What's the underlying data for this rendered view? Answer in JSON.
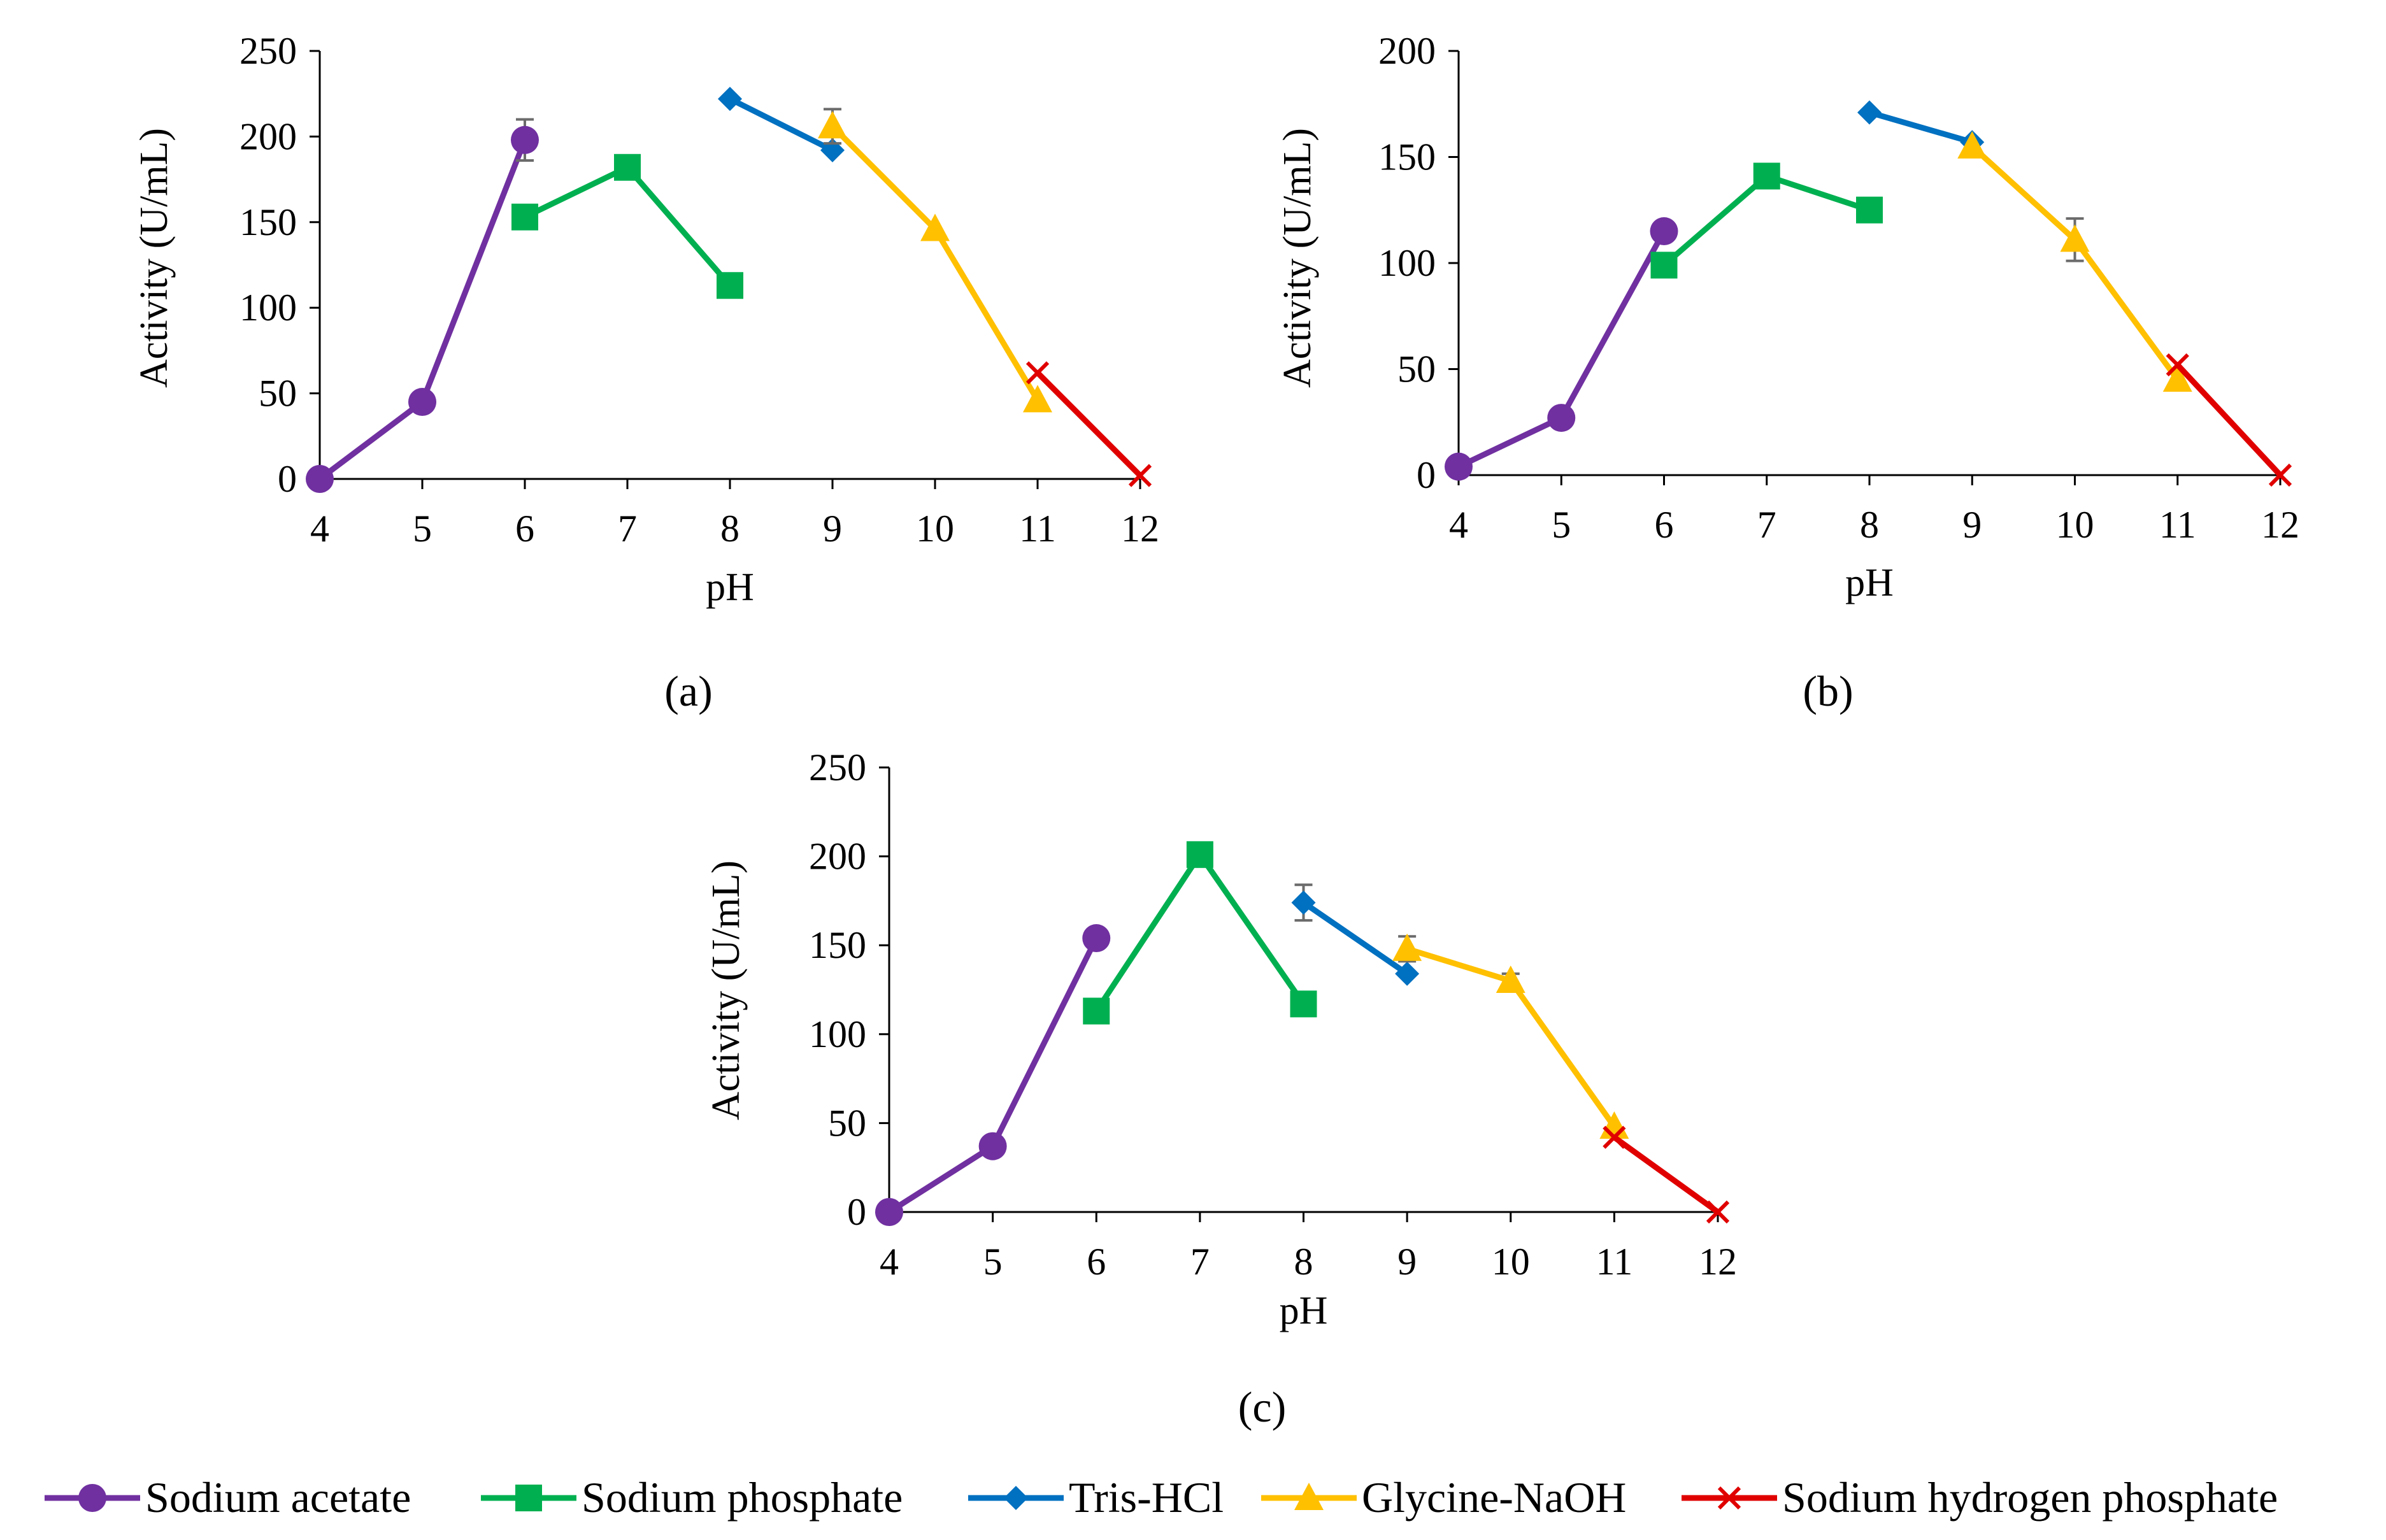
{
  "series_styles": [
    {
      "name": "Sodium acetate",
      "color": "#7030A0",
      "marker": "circle"
    },
    {
      "name": "Sodium phosphate",
      "color": "#00B050",
      "marker": "square"
    },
    {
      "name": "Tris-HCl",
      "color": "#0070C0",
      "marker": "diamond"
    },
    {
      "name": "Glycine-NaOH",
      "color": "#FFC000",
      "marker": "triangle"
    },
    {
      "name": "Sodium hydrogen phosphate",
      "color": "#E00000",
      "marker": "x"
    }
  ],
  "chart_data": [
    {
      "type": "line",
      "panel_label": "(a)",
      "xlabel": "pH",
      "ylabel": "Activity (U/mL)",
      "xlim": [
        4,
        12
      ],
      "ylim": [
        0,
        250
      ],
      "xticks": [
        4,
        5,
        6,
        7,
        8,
        9,
        10,
        11,
        12
      ],
      "yticks": [
        0,
        50,
        100,
        150,
        200,
        250
      ],
      "series": [
        {
          "name": "Sodium acetate",
          "x": [
            4,
            5,
            6
          ],
          "y": [
            0,
            45,
            198
          ],
          "err": [
            0,
            0,
            12
          ]
        },
        {
          "name": "Sodium phosphate",
          "x": [
            6,
            7,
            8
          ],
          "y": [
            153,
            182,
            113
          ],
          "err": [
            0,
            0,
            0
          ]
        },
        {
          "name": "Tris-HCl",
          "x": [
            8,
            9
          ],
          "y": [
            222,
            192
          ],
          "err": [
            0,
            0
          ]
        },
        {
          "name": "Glycine-NaOH",
          "x": [
            9,
            10,
            11
          ],
          "y": [
            206,
            146,
            46
          ],
          "err": [
            10,
            0,
            0
          ]
        },
        {
          "name": "Sodium hydrogen phosphate",
          "x": [
            11,
            12
          ],
          "y": [
            62,
            2
          ],
          "err": [
            0,
            0
          ]
        }
      ]
    },
    {
      "type": "line",
      "panel_label": "(b)",
      "xlabel": "pH",
      "ylabel": "Activity (U/mL)",
      "xlim": [
        4,
        12
      ],
      "ylim": [
        0,
        200
      ],
      "xticks": [
        4,
        5,
        6,
        7,
        8,
        9,
        10,
        11,
        12
      ],
      "yticks": [
        0,
        50,
        100,
        150,
        200
      ],
      "series": [
        {
          "name": "Sodium acetate",
          "x": [
            4,
            5,
            6
          ],
          "y": [
            4,
            27,
            115
          ],
          "err": [
            0,
            0,
            0
          ]
        },
        {
          "name": "Sodium phosphate",
          "x": [
            6,
            7,
            8
          ],
          "y": [
            99,
            141,
            125
          ],
          "err": [
            0,
            0,
            0
          ]
        },
        {
          "name": "Tris-HCl",
          "x": [
            8,
            9
          ],
          "y": [
            171,
            157
          ],
          "err": [
            0,
            0
          ]
        },
        {
          "name": "Glycine-NaOH",
          "x": [
            9,
            10,
            11
          ],
          "y": [
            155,
            111,
            45
          ],
          "err": [
            0,
            10,
            0
          ]
        },
        {
          "name": "Sodium hydrogen phosphate",
          "x": [
            11,
            12
          ],
          "y": [
            52,
            0
          ],
          "err": [
            0,
            0
          ]
        }
      ]
    },
    {
      "type": "line",
      "panel_label": "(c)",
      "xlabel": "pH",
      "ylabel": "Activity (U/mL)",
      "xlim": [
        4,
        12
      ],
      "ylim": [
        0,
        250
      ],
      "xticks": [
        4,
        5,
        6,
        7,
        8,
        9,
        10,
        11,
        12
      ],
      "yticks": [
        0,
        50,
        100,
        150,
        200,
        250
      ],
      "series": [
        {
          "name": "Sodium acetate",
          "x": [
            4,
            5,
            6
          ],
          "y": [
            0,
            37,
            154
          ],
          "err": [
            0,
            0,
            0
          ]
        },
        {
          "name": "Sodium phosphate",
          "x": [
            6,
            7,
            8
          ],
          "y": [
            113,
            201,
            117
          ],
          "err": [
            0,
            0,
            0
          ]
        },
        {
          "name": "Tris-HCl",
          "x": [
            8,
            9
          ],
          "y": [
            174,
            134
          ],
          "err": [
            10,
            0
          ]
        },
        {
          "name": "Glycine-NaOH",
          "x": [
            9,
            10,
            11
          ],
          "y": [
            148,
            130,
            48
          ],
          "err": [
            7,
            4,
            0
          ]
        },
        {
          "name": "Sodium hydrogen phosphate",
          "x": [
            11,
            12
          ],
          "y": [
            42,
            0
          ],
          "err": [
            0,
            0
          ]
        }
      ]
    }
  ]
}
